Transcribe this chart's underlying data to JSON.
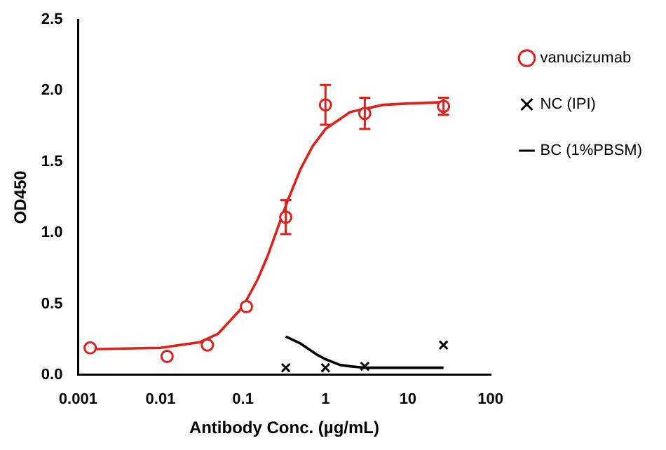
{
  "chart_data": {
    "type": "scatter",
    "xlabel": "Antibody Conc. (µg/mL)",
    "ylabel": "OD450",
    "log": "x",
    "xlim": [
      0.001,
      100
    ],
    "xticks": [
      0.001,
      0.01,
      0.1,
      1,
      10,
      100
    ],
    "ylim": [
      0,
      2.5
    ],
    "yticks": [
      {
        "value": 0,
        "label": "0.0"
      },
      0.5,
      {
        "value": 1,
        "label": "1.0"
      },
      1.5,
      {
        "value": 2,
        "label": "2.0"
      },
      2.5
    ],
    "grid": false,
    "legend": "right",
    "series": [
      {
        "name": "vanucizumab",
        "color": "#e0201b",
        "marker": "circle",
        "x": [
          0.0014,
          0.012,
          0.037,
          0.11,
          0.33,
          1,
          3,
          27
        ],
        "values": [
          0.19,
          0.13,
          0.21,
          0.48,
          1.11,
          1.9,
          1.84,
          1.89
        ],
        "errors": [
          null,
          null,
          null,
          null,
          0.12,
          0.14,
          0.11,
          0.06
        ]
      },
      {
        "type": "line",
        "color": "#e0201b",
        "marker": "none",
        "x": [
          0.0014,
          0.01,
          0.03,
          0.05,
          0.1,
          0.15,
          0.2,
          0.27,
          0.35,
          0.5,
          0.7,
          1,
          2,
          5,
          10,
          30
        ],
        "values": [
          0.18,
          0.19,
          0.23,
          0.29,
          0.48,
          0.67,
          0.84,
          1.05,
          1.23,
          1.45,
          1.61,
          1.73,
          1.85,
          1.9,
          1.91,
          1.92
        ]
      },
      {
        "name": "NC (IPI)",
        "color": "#000000",
        "marker": "cross",
        "x": [
          0.33,
          1,
          3,
          27
        ],
        "values": [
          0.05,
          0.05,
          0.06,
          0.21
        ]
      },
      {
        "name": "BC (1%PBSM)",
        "type": "line",
        "color": "#000000",
        "marker": "none",
        "x": [
          0.33,
          0.5,
          0.8,
          1,
          1.5,
          2,
          3,
          27
        ],
        "values": [
          0.27,
          0.22,
          0.14,
          0.11,
          0.07,
          0.06,
          0.05,
          0.05
        ]
      }
    ]
  }
}
